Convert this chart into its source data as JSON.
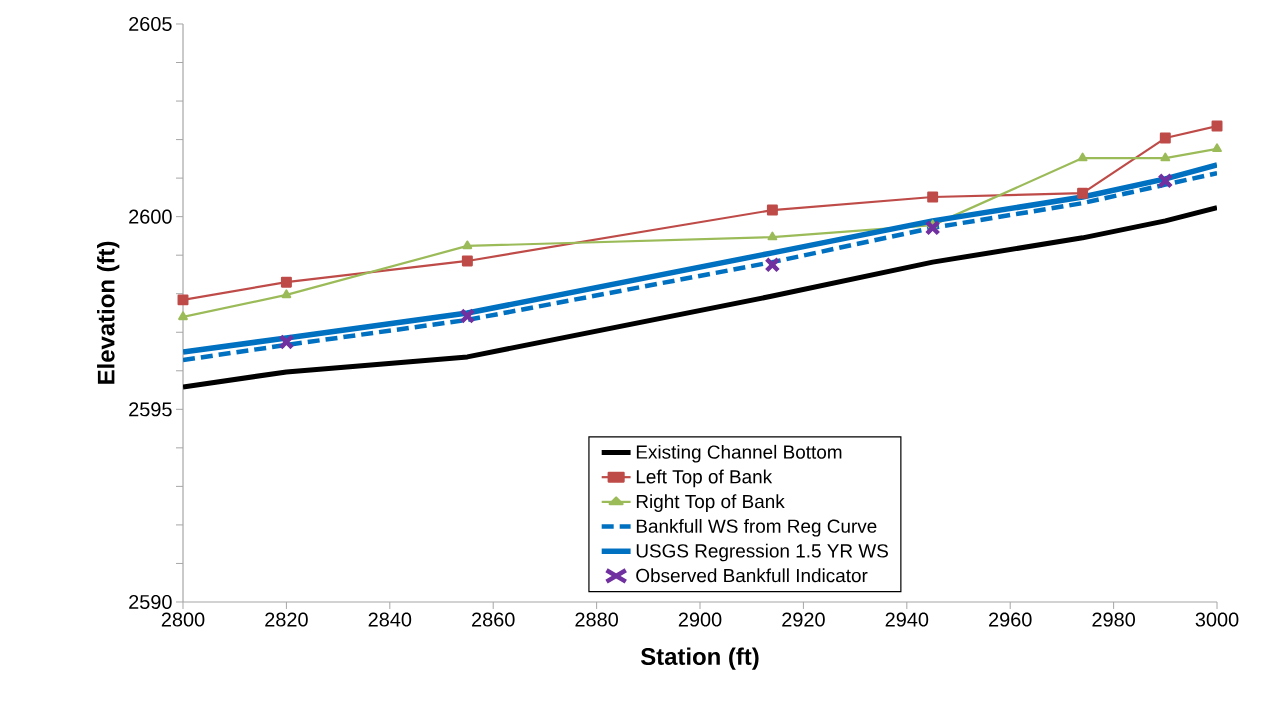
{
  "chart_data": {
    "type": "line",
    "xlabel": "Station (ft)",
    "ylabel": "Elevation (ft)",
    "xlim": [
      2800,
      3000
    ],
    "xticks": [
      2800,
      2820,
      2840,
      2860,
      2880,
      2900,
      2920,
      2940,
      2960,
      2980,
      3000
    ],
    "ylim": [
      2590,
      2605
    ],
    "yticks": [
      2590,
      {
        "value": 2591,
        "label": null
      },
      {
        "value": 2592,
        "label": null
      },
      {
        "value": 2593,
        "label": null
      },
      {
        "value": 2594,
        "label": null
      },
      2595,
      {
        "value": 2596,
        "label": null
      },
      {
        "value": 2597,
        "label": null
      },
      {
        "value": 2598,
        "label": null
      },
      {
        "value": 2599,
        "label": null
      },
      2600,
      {
        "value": 2601,
        "label": null
      },
      {
        "value": 2602,
        "label": null
      },
      {
        "value": 2603,
        "label": null
      },
      {
        "value": 2604,
        "label": null
      },
      2605
    ],
    "grid": false,
    "legend": "bottom right",
    "x": [
      2800,
      2820,
      2855,
      2914,
      2945,
      2974,
      2990,
      3000
    ],
    "series": [
      {
        "name": "Existing Channel Bottom",
        "color": "#000000",
        "marker": "none",
        "line_style": "solid",
        "values": [
          2595.58,
          2595.97,
          2596.36,
          2597.94,
          2598.82,
          2599.45,
          2599.89,
          2600.23
        ]
      },
      {
        "name": "Left Top of Bank",
        "color": "#be4b48",
        "marker": "square",
        "line_style": "solid",
        "values": [
          2597.84,
          2598.3,
          2598.85,
          2600.17,
          2600.51,
          2600.61,
          2602.04,
          2602.35
        ]
      },
      {
        "name": "Right Top of Bank",
        "color": "#9bbb59",
        "marker": "triangle",
        "line_style": "solid",
        "values": [
          2597.4,
          2597.97,
          2599.24,
          2599.47,
          2599.78,
          2601.52,
          2601.52,
          2601.76
        ]
      },
      {
        "name": "Bankfull WS from Reg Curve",
        "color": "#0070c0",
        "marker": "none",
        "line_style": "dashed",
        "values": [
          2596.28,
          2596.67,
          2597.32,
          2598.82,
          2599.71,
          2600.35,
          2600.83,
          2601.13
        ]
      },
      {
        "name": "USGS Regression 1.5 YR WS",
        "color": "#0070c0",
        "marker": "none",
        "line_style": "solid",
        "values": [
          2596.49,
          2596.85,
          2597.5,
          2599.06,
          2599.89,
          2600.51,
          2600.98,
          2601.34
        ]
      },
      {
        "name": "Observed Bankfull Indicator",
        "type": "scatter",
        "color": "#7030a0",
        "marker": "cross",
        "x": [
          2820,
          2855,
          2914,
          2945,
          2990
        ],
        "values": [
          2596.75,
          2597.42,
          2598.75,
          2599.71,
          2600.93
        ]
      }
    ]
  }
}
